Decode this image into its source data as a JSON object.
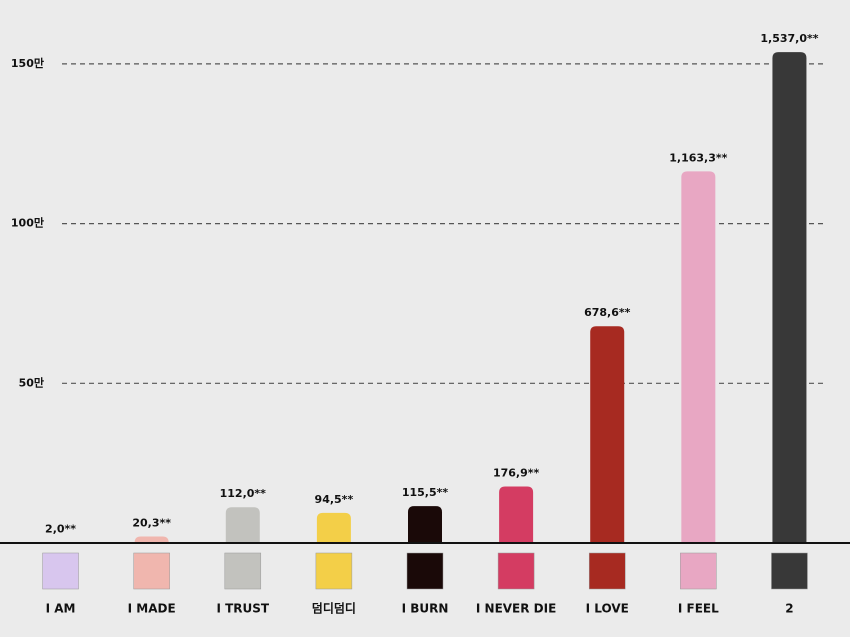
{
  "chart_data": {
    "type": "bar",
    "categories": [
      "I AM",
      "I MADE",
      "I TRUST",
      "덤디덤디",
      "I BURN",
      "I NEVER DIE",
      "I LOVE",
      "I FEEL",
      "2"
    ],
    "values": [
      0.2,
      2.03,
      11.2,
      9.45,
      11.55,
      17.69,
      67.86,
      116.33,
      153.7
    ],
    "value_labels": [
      "2,0**",
      "20,3**",
      "112,0**",
      "94,5**",
      "115,5**",
      "176,9**",
      "678,6**",
      "1,163,3**",
      "1,537,0**"
    ],
    "colors": [
      "#d8c6ee",
      "#f0b6ae",
      "#c2c2be",
      "#f3cf48",
      "#1a0908",
      "#d43c62",
      "#a72a21",
      "#e8a7c3",
      "#383838"
    ],
    "ylim": [
      0,
      170
    ],
    "yticks": [
      {
        "value": 50,
        "label": "50만"
      },
      {
        "value": 100,
        "label": "100만"
      },
      {
        "value": 150,
        "label": "150만"
      }
    ],
    "grid": true
  }
}
